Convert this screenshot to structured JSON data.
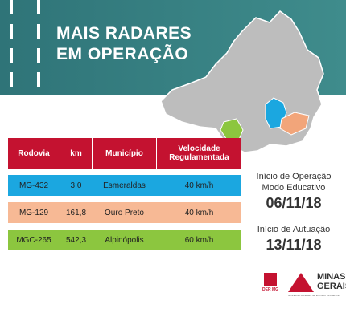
{
  "header": {
    "title_line1": "MAIS RADARES",
    "title_line2": "EM OPERAÇÃO"
  },
  "table": {
    "columns": [
      "Rodovia",
      "km",
      "Município",
      "Velocidade Regulamentada"
    ],
    "rows": [
      [
        "MG-432",
        "3,0",
        "Esmeraldas",
        "40 km/h"
      ],
      [
        "MG-129",
        "161,8",
        "Ouro Preto",
        "40 km/h"
      ],
      [
        "MGC-265",
        "542,3",
        "Alpinópolis",
        "60 km/h"
      ]
    ]
  },
  "info": {
    "operation_label_1": "Início de Operação",
    "operation_label_2": "Modo Educativo",
    "operation_date": "06/11/18",
    "enforcement_label": "Início de Autuação",
    "enforcement_date": "13/11/18"
  },
  "footer": {
    "der_logo": "DER MG",
    "state_logo_1": "MINAS",
    "state_logo_2": "GERAIS",
    "slogan": "GOVERNO DIFERENTE. ESTADO EFICIENTE."
  }
}
